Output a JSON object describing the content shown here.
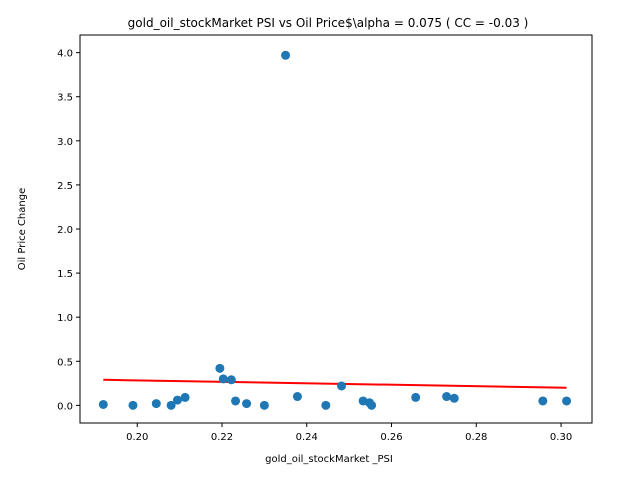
{
  "chart_data": {
    "type": "scatter",
    "title": "gold_oil_stockMarket  PSI vs Oil Price$\\alpha = 0.075 ( CC = -0.03 )",
    "xlabel": "gold_oil_stockMarket _PSI",
    "ylabel": "Oil Price Change",
    "xlim": [
      0.1865,
      0.3073
    ],
    "ylim": [
      -0.2,
      4.2
    ],
    "x_ticks": [
      0.2,
      0.22,
      0.24,
      0.26,
      0.28,
      0.3
    ],
    "x_tick_labels": [
      "0.20",
      "0.22",
      "0.24",
      "0.26",
      "0.28",
      "0.30"
    ],
    "y_ticks": [
      0.0,
      0.5,
      1.0,
      1.5,
      2.0,
      2.5,
      3.0,
      3.5,
      4.0
    ],
    "y_tick_labels": [
      "0.0",
      "0.5",
      "1.0",
      "1.5",
      "2.0",
      "2.5",
      "3.0",
      "3.5",
      "4.0"
    ],
    "grid": false,
    "point_color": "#1f77b4",
    "line_color": "#ff0000",
    "points": [
      {
        "x": 0.192,
        "y": 0.01
      },
      {
        "x": 0.199,
        "y": 0.0
      },
      {
        "x": 0.2045,
        "y": 0.02
      },
      {
        "x": 0.208,
        "y": 0.0
      },
      {
        "x": 0.2095,
        "y": 0.06
      },
      {
        "x": 0.2113,
        "y": 0.09
      },
      {
        "x": 0.2195,
        "y": 0.42
      },
      {
        "x": 0.2203,
        "y": 0.3
      },
      {
        "x": 0.2222,
        "y": 0.29
      },
      {
        "x": 0.2232,
        "y": 0.05
      },
      {
        "x": 0.2258,
        "y": 0.02
      },
      {
        "x": 0.23,
        "y": 0.0
      },
      {
        "x": 0.235,
        "y": 3.97
      },
      {
        "x": 0.2378,
        "y": 0.1
      },
      {
        "x": 0.2445,
        "y": 0.0
      },
      {
        "x": 0.2482,
        "y": 0.22
      },
      {
        "x": 0.2533,
        "y": 0.05
      },
      {
        "x": 0.2548,
        "y": 0.03
      },
      {
        "x": 0.2553,
        "y": 0.0
      },
      {
        "x": 0.2657,
        "y": 0.09
      },
      {
        "x": 0.273,
        "y": 0.1
      },
      {
        "x": 0.2748,
        "y": 0.08
      },
      {
        "x": 0.2957,
        "y": 0.05
      },
      {
        "x": 0.3013,
        "y": 0.05
      }
    ],
    "regression_line": [
      {
        "x": 0.192,
        "y": 0.29
      },
      {
        "x": 0.3013,
        "y": 0.2
      }
    ]
  }
}
